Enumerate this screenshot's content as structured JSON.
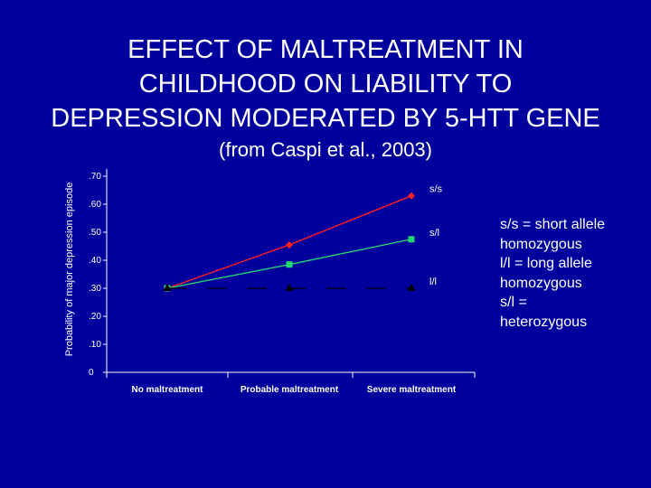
{
  "slide": {
    "title_lines": [
      "EFFECT OF MALTREATMENT IN",
      "CHILDHOOD ON LIABILITY TO",
      "DEPRESSION MODERATED BY 5-HTT GENE"
    ],
    "subtitle": "(from Caspi et al., 2003)",
    "legend_note_lines": [
      "s/s = short allele",
      "homozygous",
      "l/l = long allele",
      "homozygous",
      "s/l =",
      "heterozygous"
    ]
  },
  "colors": {
    "background": "#00009C",
    "text": "#FFFFFF",
    "axis": "#FFFFFF",
    "ss": "#FF2020",
    "sl": "#20D870",
    "ll": "#000000"
  },
  "chart_data": {
    "type": "line",
    "title": "",
    "xlabel": "",
    "ylabel": "Probability of major depression episode",
    "categories": [
      "No maltreatment",
      "Probable maltreatment",
      "Severe maltreatment"
    ],
    "ylim": [
      0,
      0.7
    ],
    "yticks": [
      0,
      0.1,
      0.2,
      0.3,
      0.4,
      0.5,
      0.6,
      0.7
    ],
    "ytick_labels": [
      "0",
      ".10",
      ".20",
      ".30",
      ".40",
      ".50",
      ".60",
      ".70"
    ],
    "series": [
      {
        "name": "s/s",
        "label": "s/s",
        "values": [
          0.3,
          0.455,
          0.63
        ],
        "marker": "diamond",
        "color": "#FF2020",
        "dash": false
      },
      {
        "name": "s/l",
        "label": "s/l",
        "values": [
          0.3,
          0.385,
          0.475
        ],
        "marker": "square",
        "color": "#20D870",
        "dash": false
      },
      {
        "name": "l/l",
        "label": "l/l",
        "values": [
          0.3,
          0.3,
          0.3
        ],
        "marker": "triangle",
        "color": "#000000",
        "dash": true
      }
    ],
    "grid": false,
    "legend": "inline-right"
  }
}
